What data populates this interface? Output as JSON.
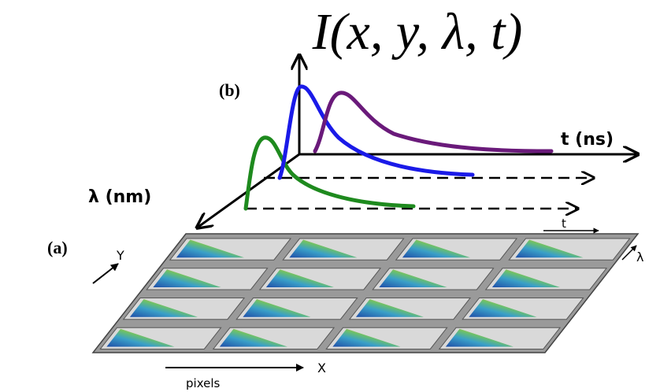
{
  "title": "I(x, y, λ, t)",
  "labels": {
    "b": "(b)",
    "t_axis": "t (ns)",
    "lambda_axis": "λ (nm)",
    "a": "(a)",
    "t_small": "t",
    "lambda_small": "λ",
    "y_axis": "Y",
    "x_axis": "X",
    "pixels": "pixels"
  }
}
